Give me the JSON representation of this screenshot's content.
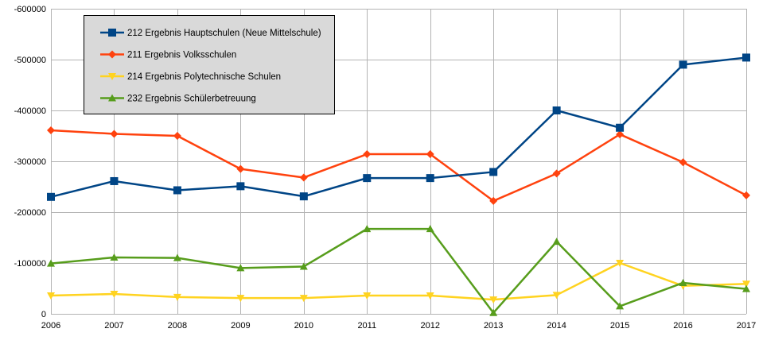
{
  "chart_data": {
    "type": "line",
    "title": "",
    "xlabel": "",
    "ylabel": "",
    "categories": [
      "2006",
      "2007",
      "2008",
      "2009",
      "2010",
      "2011",
      "2012",
      "2013",
      "2014",
      "2015",
      "2016",
      "2017"
    ],
    "ylim": [
      0,
      -600000
    ],
    "y_axis_reversed": true,
    "y_ticks": [
      0,
      -100000,
      -200000,
      -300000,
      -400000,
      -500000,
      -600000
    ],
    "y_tick_labels": [
      "0",
      "-100000",
      "-200000",
      "-300000",
      "-400000",
      "-500000",
      "-600000"
    ],
    "grid": true,
    "legend_position": "top-left",
    "series": [
      {
        "name": "212 Ergebnis Hauptschulen (Neue Mittelschule)",
        "color": "#004586",
        "marker": "square",
        "values": [
          -230000,
          -261000,
          -243000,
          -251000,
          -231000,
          -267000,
          -267000,
          -279000,
          -400000,
          -366000,
          -490000,
          -504000
        ]
      },
      {
        "name": "211 Ergebnis Volksschulen",
        "color": "#ff420e",
        "marker": "diamond",
        "values": [
          -361000,
          -354000,
          -350000,
          -285000,
          -268000,
          -314000,
          -314000,
          -222000,
          -276000,
          -353000,
          -298000,
          -233000
        ]
      },
      {
        "name": "214 Ergebnis Polytechnische Schulen",
        "color": "#ffd320",
        "marker": "triangle-down",
        "values": [
          -36000,
          -39000,
          -33000,
          -31000,
          -31000,
          -36000,
          -36000,
          -28000,
          -37000,
          -100000,
          -55000,
          -59000
        ]
      },
      {
        "name": "232 Ergebnis Schülerbetreuung",
        "color": "#579d1c",
        "marker": "triangle-up",
        "values": [
          -99000,
          -111000,
          -110000,
          -90000,
          -93000,
          -167000,
          -167000,
          -2000,
          -142000,
          -15000,
          -61000,
          -49000
        ]
      }
    ]
  }
}
